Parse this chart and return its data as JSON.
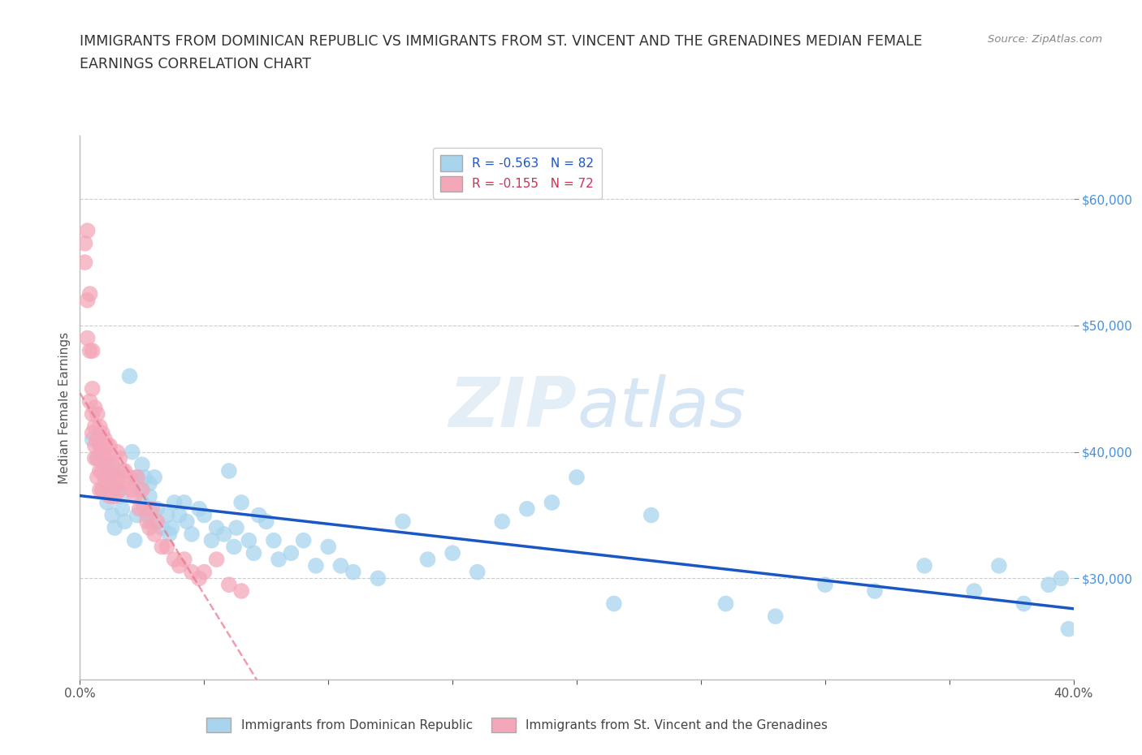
{
  "title_line1": "IMMIGRANTS FROM DOMINICAN REPUBLIC VS IMMIGRANTS FROM ST. VINCENT AND THE GRENADINES MEDIAN FEMALE",
  "title_line2": "EARNINGS CORRELATION CHART",
  "source_text": "Source: ZipAtlas.com",
  "ylabel": "Median Female Earnings",
  "legend_label_blue": "Immigrants from Dominican Republic",
  "legend_label_pink": "Immigrants from St. Vincent and the Grenadines",
  "r_blue": "R = -0.563",
  "n_blue": "N = 82",
  "r_pink": "R = -0.155",
  "n_pink": "N = 72",
  "color_blue": "#a8d4ee",
  "color_pink": "#f4a7b9",
  "trendline_blue": "#1a56c4",
  "trendline_pink": "#e8748a",
  "xmin": 0.0,
  "xmax": 0.4,
  "ymin": 22000,
  "ymax": 65000,
  "yticks": [
    30000,
    40000,
    50000,
    60000
  ],
  "xtick_labels_show": [
    "0.0%",
    "",
    "",
    "",
    "",
    "",
    "",
    "",
    "40.0%"
  ],
  "xticks": [
    0.0,
    0.05,
    0.1,
    0.15,
    0.2,
    0.25,
    0.3,
    0.35,
    0.4
  ],
  "watermark": "ZIPatlas",
  "watermark_zip_color": "#c8dff0",
  "watermark_atlas_color": "#a0c8e8",
  "blue_x": [
    0.005,
    0.007,
    0.008,
    0.009,
    0.01,
    0.01,
    0.011,
    0.012,
    0.013,
    0.014,
    0.015,
    0.015,
    0.016,
    0.017,
    0.018,
    0.02,
    0.021,
    0.022,
    0.023,
    0.023,
    0.024,
    0.025,
    0.025,
    0.026,
    0.027,
    0.028,
    0.028,
    0.029,
    0.03,
    0.031,
    0.033,
    0.035,
    0.036,
    0.037,
    0.038,
    0.04,
    0.042,
    0.043,
    0.045,
    0.048,
    0.05,
    0.053,
    0.055,
    0.058,
    0.06,
    0.062,
    0.063,
    0.065,
    0.068,
    0.07,
    0.072,
    0.075,
    0.078,
    0.08,
    0.085,
    0.09,
    0.095,
    0.1,
    0.105,
    0.11,
    0.12,
    0.13,
    0.14,
    0.15,
    0.16,
    0.17,
    0.18,
    0.19,
    0.2,
    0.215,
    0.23,
    0.26,
    0.28,
    0.3,
    0.32,
    0.34,
    0.36,
    0.37,
    0.38,
    0.39,
    0.395,
    0.398
  ],
  "blue_y": [
    41000,
    39500,
    40500,
    37000,
    38000,
    39000,
    36000,
    37500,
    35000,
    34000,
    38500,
    37000,
    36500,
    35500,
    34500,
    46000,
    40000,
    33000,
    35000,
    38000,
    37000,
    39000,
    36000,
    38000,
    35000,
    36500,
    37500,
    34500,
    38000,
    35500,
    34000,
    35000,
    33500,
    34000,
    36000,
    35000,
    36000,
    34500,
    33500,
    35500,
    35000,
    33000,
    34000,
    33500,
    38500,
    32500,
    34000,
    36000,
    33000,
    32000,
    35000,
    34500,
    33000,
    31500,
    32000,
    33000,
    31000,
    32500,
    31000,
    30500,
    30000,
    34500,
    31500,
    32000,
    30500,
    34500,
    35500,
    36000,
    38000,
    28000,
    35000,
    28000,
    27000,
    29500,
    29000,
    31000,
    29000,
    31000,
    28000,
    29500,
    30000,
    26000
  ],
  "pink_x": [
    0.002,
    0.002,
    0.003,
    0.003,
    0.003,
    0.004,
    0.004,
    0.004,
    0.005,
    0.005,
    0.005,
    0.005,
    0.006,
    0.006,
    0.006,
    0.006,
    0.007,
    0.007,
    0.007,
    0.007,
    0.008,
    0.008,
    0.008,
    0.008,
    0.009,
    0.009,
    0.009,
    0.009,
    0.01,
    0.01,
    0.01,
    0.01,
    0.011,
    0.011,
    0.011,
    0.012,
    0.012,
    0.012,
    0.013,
    0.013,
    0.014,
    0.014,
    0.015,
    0.015,
    0.016,
    0.016,
    0.017,
    0.018,
    0.019,
    0.02,
    0.021,
    0.022,
    0.023,
    0.024,
    0.025,
    0.026,
    0.027,
    0.028,
    0.029,
    0.03,
    0.031,
    0.033,
    0.035,
    0.038,
    0.04,
    0.042,
    0.045,
    0.048,
    0.05,
    0.055,
    0.06,
    0.065
  ],
  "pink_y": [
    56500,
    55000,
    57500,
    52000,
    49000,
    52500,
    48000,
    44000,
    48000,
    45000,
    43000,
    41500,
    43500,
    42000,
    40500,
    39500,
    43000,
    41000,
    39500,
    38000,
    42000,
    40500,
    38500,
    37000,
    41500,
    40000,
    38500,
    37000,
    41000,
    40000,
    39500,
    38000,
    40500,
    39000,
    37500,
    40500,
    38000,
    36500,
    39000,
    37500,
    38000,
    36500,
    40000,
    37500,
    39500,
    37000,
    38500,
    38500,
    37500,
    38000,
    37000,
    36500,
    38000,
    35500,
    37000,
    35500,
    34500,
    34000,
    35500,
    33500,
    34500,
    32500,
    32500,
    31500,
    31000,
    31500,
    30500,
    30000,
    30500,
    31500,
    29500,
    29000
  ]
}
